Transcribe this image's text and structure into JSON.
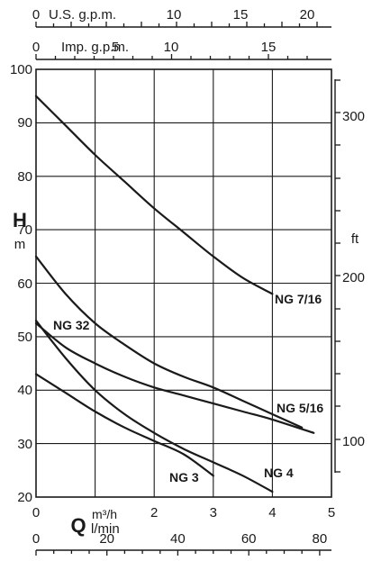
{
  "chart_data": {
    "type": "line",
    "x_range_m3h": [
      0,
      5
    ],
    "y_range_m": [
      20,
      100
    ],
    "grid": true,
    "x_ticks_m3h": [
      "0",
      "1",
      "2",
      "3",
      "4",
      "5"
    ],
    "x_ticks_lmin": [
      "0",
      "20",
      "40",
      "60",
      "80"
    ],
    "x_ticks_imp_gpm": [
      "0",
      "5",
      "10",
      "15"
    ],
    "x_ticks_us_gpm": [
      "0",
      "U.S. g.p.m.",
      "10",
      "15",
      "20"
    ],
    "imp_gpm_label": "Imp. g.p.m.",
    "y_ticks_m": [
      "20",
      "30",
      "40",
      "50",
      "60",
      "70",
      "80",
      "90",
      "100"
    ],
    "y_ticks_ft": [
      "100",
      "200",
      "300"
    ],
    "axis_titles": {
      "y_left_big": "H",
      "y_left_small": "m",
      "y_right": "ft",
      "x_bottom_big": "Q",
      "x_bottom_unit1": "m³/h",
      "x_bottom_unit2": "l/min"
    },
    "series": [
      {
        "name": "NG 7/16",
        "x": [
          0,
          0.5,
          1.0,
          1.5,
          2.0,
          2.5,
          3.0,
          3.5,
          4.0
        ],
        "y": [
          95,
          89.5,
          84,
          79,
          74,
          69.5,
          65,
          61,
          58
        ]
      },
      {
        "name": "NG 5/16",
        "x": [
          0,
          0.5,
          1.0,
          1.5,
          2.0,
          2.5,
          3.0,
          3.5,
          4.0,
          4.5
        ],
        "y": [
          65,
          58,
          52.5,
          48.5,
          45,
          42.5,
          40.5,
          38,
          35.5,
          33
        ]
      },
      {
        "name": "NG 32",
        "x": [
          0,
          0.5,
          1.0,
          1.5,
          2.0,
          2.5,
          3.0,
          3.5,
          4.0,
          4.7
        ],
        "y": [
          52.5,
          48,
          45,
          42.5,
          40.5,
          39,
          37.5,
          36,
          34.5,
          32
        ]
      },
      {
        "name": "NG 4",
        "x": [
          0,
          0.5,
          1.0,
          1.5,
          2.0,
          2.5,
          3.0,
          3.5,
          4.0
        ],
        "y": [
          53,
          46,
          40,
          35.5,
          32,
          29,
          26.5,
          24,
          21
        ]
      },
      {
        "name": "NG 3",
        "x": [
          0,
          0.5,
          1.0,
          1.5,
          2.0,
          2.5,
          3.0
        ],
        "y": [
          43,
          39.5,
          36,
          33,
          30.5,
          28,
          24
        ]
      }
    ]
  }
}
